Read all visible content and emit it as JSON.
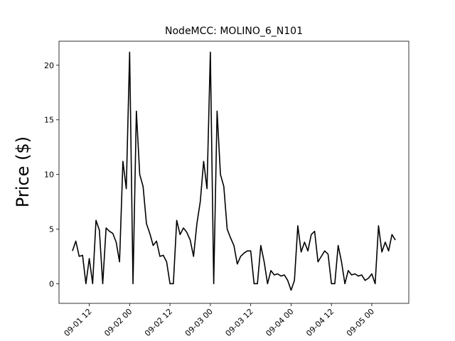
{
  "chart_data": {
    "type": "line",
    "title": "NodeMCC: MOLINO_6_N101",
    "y_label": "Price ($)",
    "x": [
      "09-01 07",
      "09-01 08",
      "09-01 09",
      "09-01 10",
      "09-01 11",
      "09-01 12",
      "09-01 13",
      "09-01 14",
      "09-01 15",
      "09-01 16",
      "09-01 17",
      "09-01 18",
      "09-01 19",
      "09-01 20",
      "09-01 21",
      "09-01 22",
      "09-01 23",
      "09-02 00",
      "09-02 01",
      "09-02 02",
      "09-02 03",
      "09-02 04",
      "09-02 05",
      "09-02 06",
      "09-02 07",
      "09-02 08",
      "09-02 09",
      "09-02 10",
      "09-02 11",
      "09-02 12",
      "09-02 13",
      "09-02 14",
      "09-02 15",
      "09-02 16",
      "09-02 17",
      "09-02 18",
      "09-02 19",
      "09-02 20",
      "09-02 21",
      "09-02 22",
      "09-02 23",
      "09-03 00",
      "09-03 01",
      "09-03 02",
      "09-03 03",
      "09-03 04",
      "09-03 05",
      "09-03 06",
      "09-03 07",
      "09-03 08",
      "09-03 09",
      "09-03 10",
      "09-03 11",
      "09-03 12",
      "09-03 13",
      "09-03 14",
      "09-03 15",
      "09-03 16",
      "09-03 17",
      "09-03 18",
      "09-03 19",
      "09-03 20",
      "09-03 21",
      "09-03 22",
      "09-03 23",
      "09-04 00",
      "09-04 01",
      "09-04 02",
      "09-04 03",
      "09-04 04",
      "09-04 05",
      "09-04 06",
      "09-04 07",
      "09-04 08",
      "09-04 09",
      "09-04 10",
      "09-04 11",
      "09-04 12",
      "09-04 13",
      "09-04 14",
      "09-04 15",
      "09-04 16",
      "09-04 17",
      "09-04 18",
      "09-04 19",
      "09-04 20",
      "09-04 21",
      "09-04 22",
      "09-04 23",
      "09-05 00",
      "09-05 01",
      "09-05 02",
      "09-05 03",
      "09-05 04",
      "09-05 05",
      "09-05 06",
      "09-05 07"
    ],
    "series": [
      {
        "color": "#000000",
        "values": [
          3.0,
          3.9,
          2.5,
          2.6,
          0,
          2.3,
          0,
          5.8,
          4.9,
          0,
          5.1,
          4.8,
          4.6,
          3.8,
          2.0,
          11.2,
          8.7,
          21.2,
          0,
          15.8,
          10,
          8.9,
          5.5,
          4.6,
          3.5,
          3.9,
          2.5,
          2.6,
          2.0,
          0,
          0,
          5.8,
          4.5,
          5.1,
          4.7,
          4.0,
          2.5,
          5.5,
          7.5,
          11.2,
          8.7,
          21.2,
          0,
          15.8,
          10,
          8.9,
          5.0,
          4.2,
          3.5,
          1.8,
          2.5,
          2.8,
          3.0,
          3.0,
          0,
          0,
          3.5,
          2.0,
          0,
          1.2,
          0.8,
          0.9,
          0.7,
          0.8,
          0.3,
          -0.6,
          0.3,
          5.3,
          2.9,
          3.8,
          3.0,
          4.5,
          4.8,
          2.0,
          2.5,
          3.0,
          2.7,
          0,
          0,
          3.5,
          2.0,
          0,
          1.2,
          0.8,
          0.9,
          0.7,
          0.8,
          0.3,
          0.5,
          0.9,
          0,
          5.3,
          2.9,
          3.8,
          3.0,
          4.5,
          4.0
        ]
      }
    ],
    "xlim": [
      "09-01 03",
      "09-05 11"
    ],
    "xticks": [
      "09-01 12",
      "09-02 00",
      "09-02 12",
      "09-03 00",
      "09-03 12",
      "09-04 00",
      "09-04 12",
      "09-05 00"
    ],
    "ylim": [
      -1.8,
      22.2
    ],
    "yticks": [
      0,
      5,
      10,
      15,
      20
    ]
  }
}
